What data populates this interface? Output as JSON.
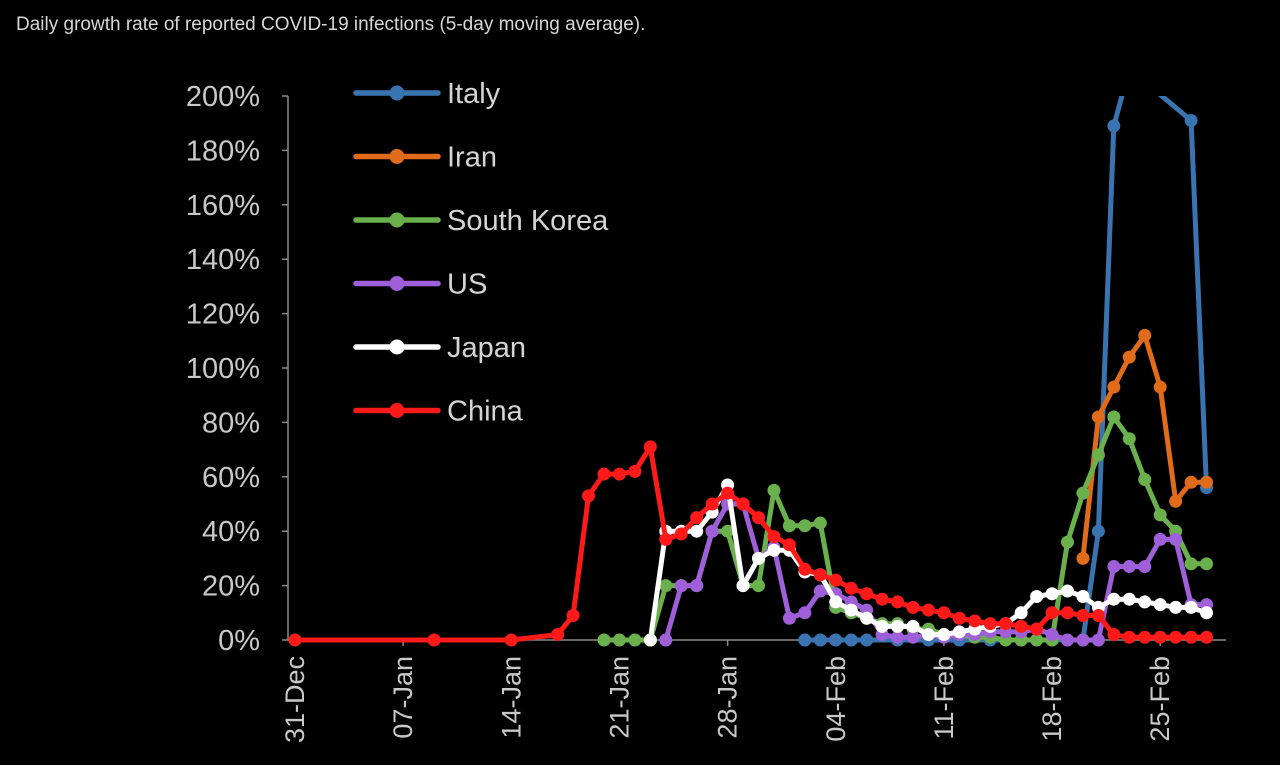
{
  "title": "Daily growth rate of reported COVID-19 infections (5-day moving average).",
  "chart_data": {
    "type": "line",
    "x_start": "31-Dec",
    "y_ticks": [
      "0%",
      "20%",
      "40%",
      "60%",
      "80%",
      "100%",
      "120%",
      "140%",
      "160%",
      "180%",
      "200%"
    ],
    "ylim": [
      0,
      200
    ],
    "x_ticks": [
      {
        "label": "31-Dec",
        "day": 0
      },
      {
        "label": "07-Jan",
        "day": 7
      },
      {
        "label": "14-Jan",
        "day": 14
      },
      {
        "label": "21-Jan",
        "day": 21
      },
      {
        "label": "28-Jan",
        "day": 28
      },
      {
        "label": "04-Feb",
        "day": 35
      },
      {
        "label": "11-Feb",
        "day": 42
      },
      {
        "label": "18-Feb",
        "day": 49
      },
      {
        "label": "25-Feb",
        "day": 56
      }
    ],
    "legend_position": "top-left",
    "series": [
      {
        "name": "Italy",
        "color": "#3a74b0",
        "x": [
          33,
          34,
          35,
          36,
          37,
          39,
          41,
          43,
          45,
          47,
          49,
          51,
          52,
          53,
          54,
          58,
          59
        ],
        "y": [
          0,
          0,
          0,
          0,
          0,
          0,
          0,
          0,
          0,
          0,
          0,
          0,
          40,
          189,
          210,
          191,
          56
        ]
      },
      {
        "name": "Iran",
        "color": "#e06b1a",
        "x": [
          51,
          52,
          53,
          54,
          55,
          56,
          57,
          58,
          59
        ],
        "y": [
          30,
          82,
          93,
          104,
          112,
          93,
          51,
          58,
          58
        ]
      },
      {
        "name": "South Korea",
        "color": "#6ab04c",
        "x": [
          20,
          21,
          22,
          23,
          24,
          25,
          26,
          27,
          28,
          29,
          30,
          31,
          32,
          33,
          34,
          35,
          36,
          37,
          38,
          39,
          40,
          41,
          42,
          43,
          44,
          45,
          46,
          47,
          48,
          49,
          50,
          51,
          52,
          53,
          54,
          55,
          56,
          57,
          58,
          59
        ],
        "y": [
          0,
          0,
          0,
          0,
          20,
          20,
          20,
          40,
          40,
          20,
          20,
          55,
          42,
          42,
          43,
          12,
          10,
          8,
          6,
          6,
          4,
          4,
          2,
          2,
          1,
          1,
          0,
          0,
          0,
          0,
          36,
          54,
          68,
          82,
          74,
          59,
          46,
          40,
          28,
          28
        ]
      },
      {
        "name": "US",
        "color": "#9f5fd8",
        "x": [
          24,
          25,
          26,
          27,
          28,
          29,
          30,
          31,
          32,
          33,
          34,
          35,
          36,
          37,
          38,
          39,
          40,
          41,
          42,
          43,
          44,
          45,
          46,
          47,
          48,
          49,
          50,
          51,
          52,
          53,
          54,
          55,
          56,
          57,
          58,
          59
        ],
        "y": [
          0,
          20,
          20,
          40,
          50,
          50,
          30,
          34,
          8,
          10,
          18,
          17,
          14,
          11,
          2,
          1,
          1,
          2,
          1,
          2,
          2,
          3,
          3,
          3,
          4,
          2,
          0,
          0,
          0,
          27,
          27,
          27,
          37,
          37,
          13,
          13
        ]
      },
      {
        "name": "Japan",
        "color": "#ffffff",
        "x": [
          23,
          24,
          25,
          26,
          27,
          28,
          29,
          30,
          31,
          32,
          33,
          34,
          35,
          36,
          37,
          38,
          39,
          40,
          41,
          42,
          43,
          44,
          45,
          46,
          47,
          48,
          49,
          50,
          51,
          52,
          53,
          54,
          55,
          56,
          57,
          58,
          59
        ],
        "y": [
          0,
          40,
          40,
          40,
          47,
          57,
          20,
          30,
          33,
          33,
          25,
          24,
          14,
          11,
          8,
          5,
          5,
          5,
          2,
          2,
          3,
          4,
          5,
          6,
          10,
          16,
          17,
          18,
          16,
          12,
          15,
          15,
          14,
          13,
          12,
          12,
          10
        ]
      },
      {
        "name": "China",
        "color": "#ff1a1a",
        "x": [
          0,
          9,
          14,
          17,
          18,
          19,
          20,
          21,
          22,
          23,
          24,
          25,
          26,
          27,
          28,
          29,
          30,
          31,
          32,
          33,
          34,
          35,
          36,
          37,
          38,
          39,
          40,
          41,
          42,
          43,
          44,
          45,
          46,
          47,
          48,
          49,
          50,
          51,
          52,
          53,
          54,
          55,
          56,
          57,
          58,
          59
        ],
        "y": [
          0,
          0,
          0,
          2,
          9,
          53,
          61,
          61,
          62,
          71,
          37,
          39,
          45,
          50,
          54,
          50,
          45,
          38,
          35,
          26,
          24,
          22,
          19,
          17,
          15,
          14,
          12,
          11,
          10,
          8,
          7,
          6,
          6,
          5,
          4,
          10,
          10,
          9,
          9,
          2,
          1,
          1,
          1,
          1,
          1,
          1
        ]
      }
    ]
  }
}
